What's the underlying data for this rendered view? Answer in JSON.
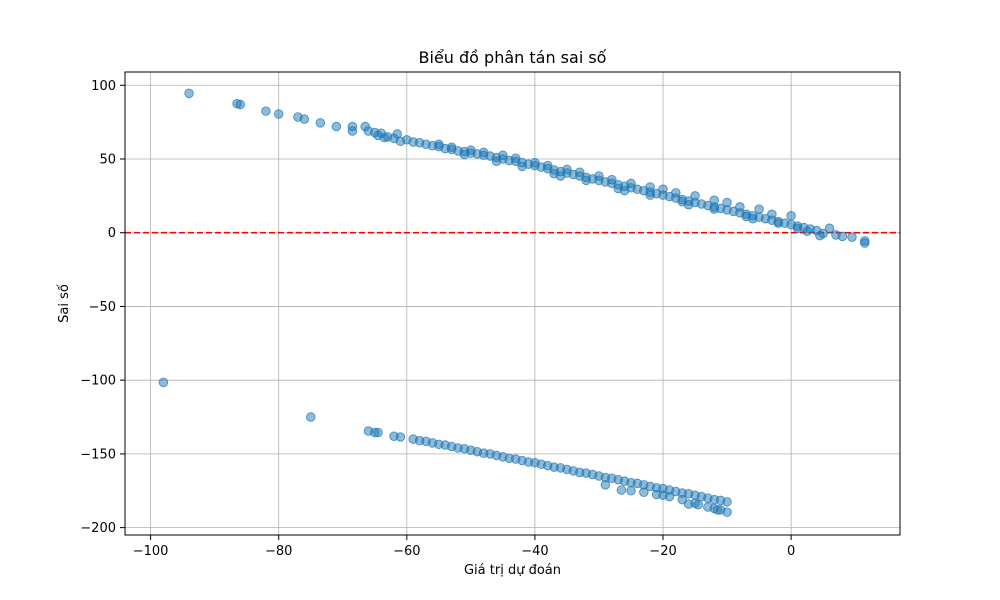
{
  "chart_data": {
    "type": "scatter",
    "title": "Biểu đồ phân tán sai số",
    "xlabel": "Giá trị dự đoán",
    "ylabel": "Sai số",
    "xlim": [
      -104,
      17
    ],
    "ylim": [
      -205,
      109
    ],
    "x_ticks": [
      -100,
      -80,
      -60,
      -40,
      -20,
      0
    ],
    "y_ticks": [
      100,
      50,
      0,
      -50,
      -100,
      -150,
      -200
    ],
    "x_tick_labels": [
      "−100",
      "−80",
      "−60",
      "−40",
      "−20",
      "0"
    ],
    "y_tick_labels": [
      "100",
      "50",
      "0",
      "−50",
      "−100",
      "−150",
      "−200"
    ],
    "grid": true,
    "reference_line": {
      "y": 0,
      "color": "#ff0000",
      "style": "dashed"
    },
    "marker_color": "#1f77b4",
    "marker_alpha": 0.5,
    "series": [
      {
        "points": [
          [
            -94,
            94.5
          ],
          [
            -86.5,
            87.5
          ],
          [
            -86,
            87
          ],
          [
            -82,
            82.5
          ],
          [
            -80,
            80.5
          ],
          [
            -77,
            78.5
          ],
          [
            -76,
            77
          ],
          [
            -73.5,
            74.5
          ],
          [
            -71,
            72
          ],
          [
            -68.5,
            72
          ],
          [
            -68.5,
            69
          ],
          [
            -66.5,
            72
          ],
          [
            -66,
            69
          ],
          [
            -65,
            68
          ],
          [
            -64.5,
            66
          ],
          [
            -64,
            67.5
          ],
          [
            -63.5,
            64.5
          ],
          [
            -63,
            65
          ],
          [
            -62,
            64
          ],
          [
            -61.5,
            67
          ],
          [
            -61,
            62
          ],
          [
            -60,
            63
          ],
          [
            -59,
            61.5
          ],
          [
            -58,
            61
          ],
          [
            -57,
            60
          ],
          [
            -56,
            59
          ],
          [
            -55,
            58.5
          ],
          [
            -54,
            57
          ],
          [
            -53,
            56.5
          ],
          [
            -52,
            55.5
          ],
          [
            -51,
            55
          ],
          [
            -50,
            54
          ],
          [
            -49,
            53.5
          ],
          [
            -48,
            52.5
          ],
          [
            -47,
            52
          ],
          [
            -46,
            51
          ],
          [
            -45,
            50
          ],
          [
            -44,
            49
          ],
          [
            -43,
            48.5
          ],
          [
            -42,
            47.5
          ],
          [
            -41,
            46.5
          ],
          [
            -40,
            45.5
          ],
          [
            -39,
            44.5
          ],
          [
            -38,
            43.5
          ],
          [
            -37,
            42.5
          ],
          [
            -36,
            41.5
          ],
          [
            -35,
            40.5
          ],
          [
            -34,
            39.5
          ],
          [
            -33,
            38.5
          ],
          [
            -32,
            37.5
          ],
          [
            -31,
            36.5
          ],
          [
            -30,
            35.5
          ],
          [
            -29,
            34.5
          ],
          [
            -28,
            33.5
          ],
          [
            -27,
            32.5
          ],
          [
            -26,
            31.5
          ],
          [
            -25,
            30.5
          ],
          [
            -24,
            29.5
          ],
          [
            -23,
            28.5
          ],
          [
            -22,
            27.5
          ],
          [
            -21,
            26.5
          ],
          [
            -20,
            25.5
          ],
          [
            -19,
            24.5
          ],
          [
            -18,
            23.5
          ],
          [
            -17,
            22.5
          ],
          [
            -16,
            21.5
          ],
          [
            -15,
            20.5
          ],
          [
            -14,
            19.5
          ],
          [
            -13,
            18.5
          ],
          [
            -12,
            17.5
          ],
          [
            -11,
            16.5
          ],
          [
            -10,
            15.5
          ],
          [
            -9,
            14.5
          ],
          [
            -8,
            13.5
          ],
          [
            -7,
            12.5
          ],
          [
            -6,
            11.5
          ],
          [
            -5,
            10.5
          ],
          [
            -4,
            9.5
          ],
          [
            -3,
            8.5
          ],
          [
            -2,
            7.5
          ],
          [
            -1,
            6.5
          ],
          [
            0,
            5.5
          ],
          [
            1,
            4.5
          ],
          [
            2,
            3.5
          ],
          [
            3,
            2.5
          ],
          [
            -55,
            60
          ],
          [
            -50,
            56
          ],
          [
            -45,
            52.5
          ],
          [
            -40,
            47.5
          ],
          [
            -35,
            43
          ],
          [
            -30,
            38.5
          ],
          [
            -25,
            33.5
          ],
          [
            -20,
            29.5
          ],
          [
            -15,
            25
          ],
          [
            -10,
            20.5
          ],
          [
            -5,
            16
          ],
          [
            0,
            11.5
          ],
          [
            -8,
            17.5
          ],
          [
            -3,
            12.5
          ],
          [
            -22,
            31
          ],
          [
            -18,
            27
          ],
          [
            -12,
            22
          ],
          [
            -28,
            36
          ],
          [
            -33,
            41
          ],
          [
            -38,
            45.5
          ],
          [
            -43,
            50.5
          ],
          [
            -48,
            54.5
          ],
          [
            -53,
            58
          ],
          [
            -42,
            45
          ],
          [
            -37,
            40
          ],
          [
            -32,
            35.5
          ],
          [
            -27,
            30
          ],
          [
            -22,
            25.5
          ],
          [
            -17,
            21
          ],
          [
            -12,
            16
          ],
          [
            -7,
            11
          ],
          [
            -2,
            6.5
          ],
          [
            1,
            3
          ],
          [
            -46,
            48.5
          ],
          [
            -51,
            53
          ],
          [
            -36,
            38.5
          ],
          [
            -26,
            28.5
          ],
          [
            -16,
            19
          ],
          [
            -6,
            9.5
          ],
          [
            4,
            1.5
          ],
          [
            5,
            -0.5
          ],
          [
            6,
            3
          ],
          [
            7,
            -1.5
          ],
          [
            8,
            -2.5
          ],
          [
            9.5,
            -3
          ],
          [
            11.5,
            -7
          ],
          [
            11.5,
            -5.5
          ],
          [
            4.5,
            -2
          ],
          [
            2.5,
            1
          ]
        ]
      },
      {
        "points": [
          [
            -98,
            -101.5
          ],
          [
            -75,
            -125
          ],
          [
            -66,
            -134.5
          ],
          [
            -65,
            -135.5
          ],
          [
            -64.5,
            -135.5
          ],
          [
            -62,
            -138
          ],
          [
            -61,
            -138.5
          ],
          [
            -59,
            -140
          ],
          [
            -58,
            -141
          ],
          [
            -57,
            -141.5
          ],
          [
            -56,
            -142.5
          ],
          [
            -55,
            -143.5
          ],
          [
            -54,
            -144
          ],
          [
            -53,
            -145
          ],
          [
            -52,
            -146
          ],
          [
            -51,
            -146.5
          ],
          [
            -50,
            -147.5
          ],
          [
            -49,
            -148.5
          ],
          [
            -48,
            -149.5
          ],
          [
            -47,
            -150
          ],
          [
            -46,
            -151
          ],
          [
            -45,
            -152
          ],
          [
            -44,
            -153
          ],
          [
            -43,
            -153.5
          ],
          [
            -42,
            -154.5
          ],
          [
            -41,
            -155.5
          ],
          [
            -40,
            -156
          ],
          [
            -39,
            -157
          ],
          [
            -38,
            -158
          ],
          [
            -37,
            -159
          ],
          [
            -36,
            -159.5
          ],
          [
            -35,
            -160.5
          ],
          [
            -34,
            -161.5
          ],
          [
            -33,
            -162.5
          ],
          [
            -32,
            -163
          ],
          [
            -31,
            -164
          ],
          [
            -30,
            -165
          ],
          [
            -29,
            -166
          ],
          [
            -28,
            -166.5
          ],
          [
            -27,
            -167.5
          ],
          [
            -26,
            -168.5
          ],
          [
            -25,
            -169.5
          ],
          [
            -24,
            -170
          ],
          [
            -23,
            -171
          ],
          [
            -22,
            -172
          ],
          [
            -21,
            -173
          ],
          [
            -20,
            -173.5
          ],
          [
            -19,
            -174.5
          ],
          [
            -18,
            -175.5
          ],
          [
            -17,
            -176.5
          ],
          [
            -16,
            -177
          ],
          [
            -15,
            -178
          ],
          [
            -14,
            -179
          ],
          [
            -13,
            -180
          ],
          [
            -12,
            -181
          ],
          [
            -11,
            -181.5
          ],
          [
            -10,
            -182.5
          ],
          [
            -29,
            -171
          ],
          [
            -26.5,
            -174.5
          ],
          [
            -25,
            -175
          ],
          [
            -23,
            -176
          ],
          [
            -21,
            -177.5
          ],
          [
            -20,
            -178
          ],
          [
            -19,
            -179
          ],
          [
            -17,
            -181
          ],
          [
            -15,
            -183.5
          ],
          [
            -14.5,
            -184.5
          ],
          [
            -13,
            -186
          ],
          [
            -12,
            -187
          ],
          [
            -11,
            -188
          ],
          [
            -10,
            -189.5
          ],
          [
            -11.5,
            -188
          ],
          [
            -16,
            -184
          ]
        ]
      }
    ]
  }
}
